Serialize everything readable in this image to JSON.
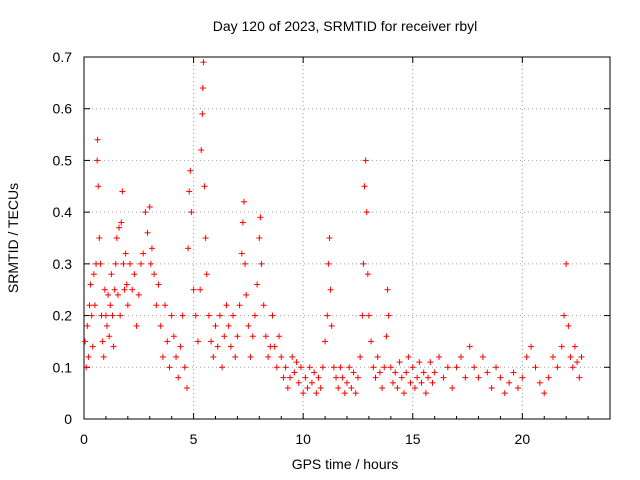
{
  "chart_data": {
    "type": "scatter",
    "title": "Day 120 of 2023, SRMTID for receiver rbyl",
    "xlabel": "GPS time / hours",
    "ylabel": "SRMTID / TECUs",
    "xlim": [
      0,
      24
    ],
    "ylim": [
      0,
      0.7
    ],
    "xticks": [
      0,
      5,
      10,
      15,
      20
    ],
    "yticks": [
      0,
      0.1,
      0.2,
      0.3,
      0.4,
      0.5,
      0.6,
      0.7
    ],
    "grid": true,
    "marker": "+",
    "color": "#ff0000",
    "series": [
      {
        "name": "SRMTID",
        "points": [
          [
            0.05,
            0.15
          ],
          [
            0.1,
            0.1
          ],
          [
            0.15,
            0.18
          ],
          [
            0.2,
            0.12
          ],
          [
            0.25,
            0.22
          ],
          [
            0.3,
            0.26
          ],
          [
            0.35,
            0.2
          ],
          [
            0.4,
            0.14
          ],
          [
            0.45,
            0.28
          ],
          [
            0.5,
            0.22
          ],
          [
            0.55,
            0.3
          ],
          [
            0.6,
            0.5
          ],
          [
            0.62,
            0.54
          ],
          [
            0.65,
            0.45
          ],
          [
            0.7,
            0.35
          ],
          [
            0.75,
            0.3
          ],
          [
            0.8,
            0.2
          ],
          [
            0.85,
            0.15
          ],
          [
            0.9,
            0.12
          ],
          [
            0.95,
            0.25
          ],
          [
            1.0,
            0.2
          ],
          [
            1.05,
            0.18
          ],
          [
            1.1,
            0.24
          ],
          [
            1.15,
            0.16
          ],
          [
            1.2,
            0.22
          ],
          [
            1.25,
            0.28
          ],
          [
            1.3,
            0.2
          ],
          [
            1.35,
            0.14
          ],
          [
            1.4,
            0.25
          ],
          [
            1.45,
            0.3
          ],
          [
            1.5,
            0.35
          ],
          [
            1.55,
            0.24
          ],
          [
            1.6,
            0.37
          ],
          [
            1.65,
            0.2
          ],
          [
            1.7,
            0.38
          ],
          [
            1.75,
            0.44
          ],
          [
            1.8,
            0.3
          ],
          [
            1.85,
            0.25
          ],
          [
            1.9,
            0.32
          ],
          [
            1.95,
            0.26
          ],
          [
            2.0,
            0.22
          ],
          [
            2.1,
            0.3
          ],
          [
            2.2,
            0.25
          ],
          [
            2.3,
            0.28
          ],
          [
            2.4,
            0.18
          ],
          [
            2.5,
            0.24
          ],
          [
            2.6,
            0.3
          ],
          [
            2.7,
            0.32
          ],
          [
            2.8,
            0.4
          ],
          [
            2.9,
            0.36
          ],
          [
            3.0,
            0.41
          ],
          [
            3.05,
            0.3
          ],
          [
            3.1,
            0.33
          ],
          [
            3.2,
            0.28
          ],
          [
            3.3,
            0.22
          ],
          [
            3.4,
            0.26
          ],
          [
            3.5,
            0.18
          ],
          [
            3.6,
            0.12
          ],
          [
            3.7,
            0.22
          ],
          [
            3.8,
            0.15
          ],
          [
            3.9,
            0.1
          ],
          [
            4.0,
            0.2
          ],
          [
            4.1,
            0.16
          ],
          [
            4.2,
            0.12
          ],
          [
            4.3,
            0.08
          ],
          [
            4.4,
            0.14
          ],
          [
            4.5,
            0.2
          ],
          [
            4.6,
            0.1
          ],
          [
            4.7,
            0.06
          ],
          [
            4.75,
            0.33
          ],
          [
            4.8,
            0.44
          ],
          [
            4.85,
            0.48
          ],
          [
            4.9,
            0.4
          ],
          [
            5.0,
            0.25
          ],
          [
            5.1,
            0.2
          ],
          [
            5.2,
            0.15
          ],
          [
            5.3,
            0.25
          ],
          [
            5.35,
            0.52
          ],
          [
            5.4,
            0.59
          ],
          [
            5.42,
            0.64
          ],
          [
            5.45,
            0.69
          ],
          [
            5.5,
            0.45
          ],
          [
            5.55,
            0.35
          ],
          [
            5.6,
            0.28
          ],
          [
            5.7,
            0.2
          ],
          [
            5.8,
            0.15
          ],
          [
            5.9,
            0.12
          ],
          [
            6.0,
            0.18
          ],
          [
            6.1,
            0.14
          ],
          [
            6.2,
            0.2
          ],
          [
            6.3,
            0.1
          ],
          [
            6.4,
            0.16
          ],
          [
            6.5,
            0.22
          ],
          [
            6.6,
            0.18
          ],
          [
            6.7,
            0.14
          ],
          [
            6.8,
            0.2
          ],
          [
            6.9,
            0.12
          ],
          [
            7.0,
            0.16
          ],
          [
            7.1,
            0.22
          ],
          [
            7.2,
            0.32
          ],
          [
            7.25,
            0.38
          ],
          [
            7.3,
            0.42
          ],
          [
            7.35,
            0.3
          ],
          [
            7.4,
            0.24
          ],
          [
            7.5,
            0.18
          ],
          [
            7.6,
            0.12
          ],
          [
            7.7,
            0.16
          ],
          [
            7.8,
            0.2
          ],
          [
            7.9,
            0.26
          ],
          [
            8.0,
            0.35
          ],
          [
            8.05,
            0.39
          ],
          [
            8.1,
            0.3
          ],
          [
            8.2,
            0.22
          ],
          [
            8.3,
            0.16
          ],
          [
            8.4,
            0.12
          ],
          [
            8.5,
            0.14
          ],
          [
            8.6,
            0.2
          ],
          [
            8.7,
            0.14
          ],
          [
            8.8,
            0.1
          ],
          [
            8.9,
            0.16
          ],
          [
            9.0,
            0.12
          ],
          [
            9.1,
            0.08
          ],
          [
            9.2,
            0.1
          ],
          [
            9.3,
            0.06
          ],
          [
            9.4,
            0.08
          ],
          [
            9.5,
            0.12
          ],
          [
            9.6,
            0.09
          ],
          [
            9.7,
            0.11
          ],
          [
            9.8,
            0.07
          ],
          [
            9.9,
            0.1
          ],
          [
            10.0,
            0.05
          ],
          [
            10.1,
            0.08
          ],
          [
            10.2,
            0.06
          ],
          [
            10.3,
            0.1
          ],
          [
            10.4,
            0.07
          ],
          [
            10.5,
            0.09
          ],
          [
            10.6,
            0.05
          ],
          [
            10.7,
            0.08
          ],
          [
            10.8,
            0.06
          ],
          [
            10.9,
            0.1
          ],
          [
            11.0,
            0.15
          ],
          [
            11.1,
            0.2
          ],
          [
            11.15,
            0.3
          ],
          [
            11.2,
            0.35
          ],
          [
            11.25,
            0.25
          ],
          [
            11.3,
            0.18
          ],
          [
            11.4,
            0.1
          ],
          [
            11.5,
            0.08
          ],
          [
            11.6,
            0.06
          ],
          [
            11.7,
            0.1
          ],
          [
            11.8,
            0.08
          ],
          [
            11.9,
            0.05
          ],
          [
            12.0,
            0.07
          ],
          [
            12.1,
            0.1
          ],
          [
            12.2,
            0.06
          ],
          [
            12.3,
            0.09
          ],
          [
            12.4,
            0.05
          ],
          [
            12.5,
            0.08
          ],
          [
            12.6,
            0.12
          ],
          [
            12.7,
            0.2
          ],
          [
            12.75,
            0.3
          ],
          [
            12.8,
            0.45
          ],
          [
            12.85,
            0.5
          ],
          [
            12.9,
            0.4
          ],
          [
            12.95,
            0.28
          ],
          [
            13.0,
            0.2
          ],
          [
            13.1,
            0.15
          ],
          [
            13.2,
            0.1
          ],
          [
            13.3,
            0.08
          ],
          [
            13.4,
            0.12
          ],
          [
            13.5,
            0.09
          ],
          [
            13.6,
            0.06
          ],
          [
            13.7,
            0.1
          ],
          [
            13.8,
            0.16
          ],
          [
            13.85,
            0.25
          ],
          [
            13.9,
            0.2
          ],
          [
            14.0,
            0.1
          ],
          [
            14.1,
            0.07
          ],
          [
            14.2,
            0.09
          ],
          [
            14.3,
            0.06
          ],
          [
            14.4,
            0.11
          ],
          [
            14.5,
            0.08
          ],
          [
            14.6,
            0.05
          ],
          [
            14.7,
            0.09
          ],
          [
            14.8,
            0.12
          ],
          [
            14.9,
            0.07
          ],
          [
            15.0,
            0.1
          ],
          [
            15.1,
            0.06
          ],
          [
            15.2,
            0.08
          ],
          [
            15.3,
            0.11
          ],
          [
            15.4,
            0.07
          ],
          [
            15.5,
            0.09
          ],
          [
            15.6,
            0.05
          ],
          [
            15.7,
            0.08
          ],
          [
            15.8,
            0.11
          ],
          [
            15.9,
            0.07
          ],
          [
            16.0,
            0.09
          ],
          [
            16.2,
            0.12
          ],
          [
            16.4,
            0.08
          ],
          [
            16.6,
            0.1
          ],
          [
            16.8,
            0.06
          ],
          [
            17.0,
            0.1
          ],
          [
            17.2,
            0.12
          ],
          [
            17.4,
            0.08
          ],
          [
            17.6,
            0.14
          ],
          [
            17.8,
            0.1
          ],
          [
            18.0,
            0.08
          ],
          [
            18.2,
            0.12
          ],
          [
            18.4,
            0.09
          ],
          [
            18.6,
            0.06
          ],
          [
            18.8,
            0.1
          ],
          [
            19.0,
            0.08
          ],
          [
            19.2,
            0.05
          ],
          [
            19.4,
            0.07
          ],
          [
            19.6,
            0.09
          ],
          [
            19.8,
            0.06
          ],
          [
            20.0,
            0.08
          ],
          [
            20.2,
            0.12
          ],
          [
            20.4,
            0.14
          ],
          [
            20.6,
            0.1
          ],
          [
            20.8,
            0.07
          ],
          [
            21.0,
            0.05
          ],
          [
            21.2,
            0.08
          ],
          [
            21.4,
            0.12
          ],
          [
            21.6,
            0.1
          ],
          [
            21.8,
            0.14
          ],
          [
            21.9,
            0.2
          ],
          [
            22.0,
            0.3
          ],
          [
            22.1,
            0.18
          ],
          [
            22.2,
            0.12
          ],
          [
            22.3,
            0.1
          ],
          [
            22.4,
            0.14
          ],
          [
            22.5,
            0.11
          ],
          [
            22.6,
            0.08
          ],
          [
            22.7,
            0.12
          ]
        ]
      }
    ]
  }
}
